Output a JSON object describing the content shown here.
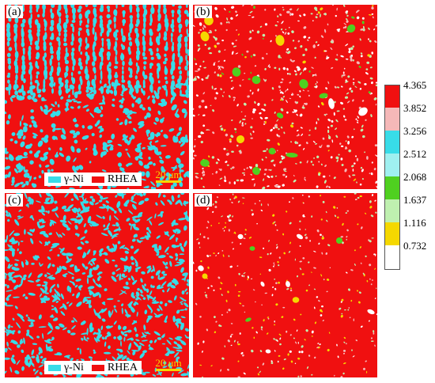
{
  "panels": [
    {
      "label": "(a)"
    },
    {
      "label": "(b)"
    },
    {
      "label": "(c)"
    },
    {
      "label": "(d)"
    }
  ],
  "legend_top": {
    "items": [
      {
        "label": "γ-Ni",
        "color": "#38dce8"
      },
      {
        "label": "RHEA",
        "color": "#f01010"
      }
    ],
    "scale": "20 μm"
  },
  "legend_bottom": {
    "items": [
      {
        "label": "γ-Ni",
        "color": "#38dce8"
      },
      {
        "label": "RHEA",
        "color": "#f01010"
      }
    ],
    "scale": "20 μm"
  },
  "colorbar": {
    "ticks": [
      "4.365",
      "3.852",
      "3.256",
      "2.512",
      "2.068",
      "1.637",
      "1.116",
      "0.732"
    ],
    "colors": [
      "#f01010",
      "#f5b8b8",
      "#38dce8",
      "#9ff0f0",
      "#4fd020",
      "#bff0b0",
      "#f5d800",
      "#ffffff"
    ]
  }
}
